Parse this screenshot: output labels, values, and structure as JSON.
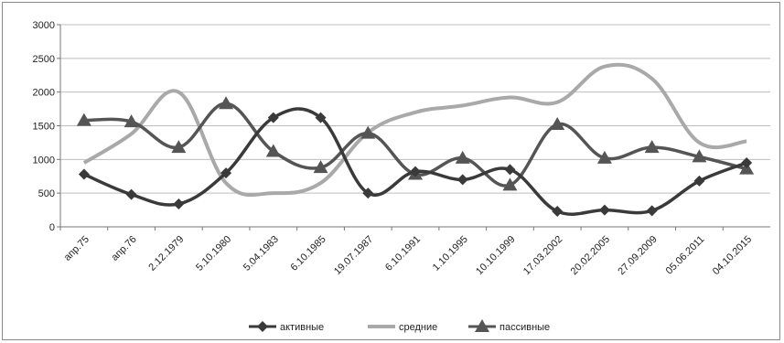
{
  "chart_data": {
    "type": "line",
    "categories": [
      "апр.75",
      "апр.76",
      "2.12.1979",
      "5.10.1980",
      "5.04.1983",
      "6.10.1985",
      "19.07.1987",
      "6.10.1991",
      "1.10.1995",
      "10.10.1999",
      "17.03.2002",
      "20.02.2005",
      "27.09.2009",
      "05.06.2011",
      "04.10.2015"
    ],
    "ylim": [
      0,
      3000
    ],
    "yticks": [
      0,
      500,
      1000,
      1500,
      2000,
      2500,
      3000
    ],
    "grid": true,
    "legend": "bottom",
    "series": [
      {
        "name": "активные",
        "marker": "diamond",
        "color": "#3a3a3a",
        "values": [
          780,
          480,
          340,
          800,
          1620,
          1620,
          500,
          820,
          700,
          850,
          230,
          250,
          240,
          680,
          950
        ]
      },
      {
        "name": "средние",
        "marker": "none",
        "color": "#a9a9a9",
        "values": [
          950,
          1380,
          2000,
          650,
          500,
          650,
          1400,
          1700,
          1800,
          1920,
          1850,
          2380,
          2200,
          1250,
          1270
        ]
      },
      {
        "name": "пассивные",
        "marker": "triangle",
        "color": "#555555",
        "values": [
          1580,
          1560,
          1180,
          1830,
          1120,
          880,
          1390,
          780,
          1020,
          620,
          1520,
          1020,
          1180,
          1040,
          860
        ]
      }
    ]
  }
}
